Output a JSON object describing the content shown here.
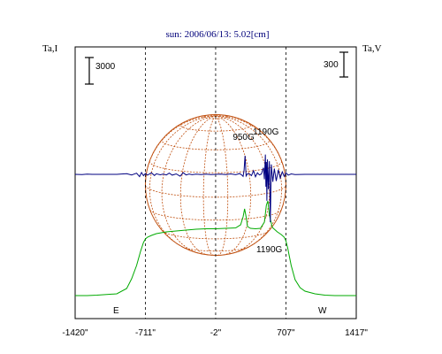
{
  "chart_data": {
    "type": "line",
    "title": "sun: 2006/06/13: 5.02[cm]",
    "left_axis_label": "Ta,I",
    "right_axis_label": "Ta,V",
    "left_scale_bar_label": "3000",
    "right_scale_bar_label": "300",
    "xlim": [
      -1420,
      1417
    ],
    "x_ticks": [
      {
        "value": -1420,
        "label": "-1420\""
      },
      {
        "value": -711,
        "label": "-711\""
      },
      {
        "value": -2,
        "label": "-2\""
      },
      {
        "value": 707,
        "label": "707\""
      },
      {
        "value": 1417,
        "label": "1417\""
      }
    ],
    "limb_labels": {
      "east": "E",
      "west": "W"
    },
    "limb_positions": [
      -711,
      707
    ],
    "annotations": [
      {
        "text": "950G",
        "x": 280
      },
      {
        "text": "1190G",
        "x": 505
      },
      {
        "text": "1190G",
        "x": 540
      }
    ],
    "colors": {
      "stokes_i": "#00aa00",
      "stokes_v": "#000080",
      "grid": "#c05010",
      "axis": "#000000"
    },
    "series": [
      {
        "name": "",
        "axis": "left",
        "x": [
          -1420,
          -1300,
          -1200,
          -1000,
          -900,
          -850,
          -800,
          -760,
          -730,
          -711,
          -690,
          -650,
          -600,
          -500,
          -400,
          -300,
          -200,
          -100,
          -2,
          100,
          200,
          250,
          275,
          290,
          305,
          320,
          350,
          400,
          450,
          490,
          510,
          525,
          540,
          570,
          620,
          660,
          690,
          707,
          725,
          760,
          800,
          850,
          900,
          1000,
          1100,
          1200,
          1300,
          1417
        ],
        "y": [
          300,
          300,
          350,
          500,
          1100,
          2200,
          3700,
          5300,
          6300,
          6700,
          6900,
          7100,
          7300,
          7500,
          7600,
          7700,
          7800,
          7850,
          7850,
          7900,
          7950,
          8300,
          9200,
          10100,
          9200,
          8100,
          7900,
          7850,
          7900,
          8600,
          10500,
          11000,
          9400,
          8000,
          7500,
          7200,
          6900,
          6500,
          5700,
          3700,
          2100,
          1200,
          800,
          500,
          350,
          300,
          300,
          300
        ]
      },
      {
        "name": "",
        "axis": "right",
        "x": [
          -1420,
          -1350,
          -1300,
          -1250,
          -1200,
          -1100,
          -1000,
          -900,
          -850,
          -800,
          -770,
          -750,
          -730,
          -711,
          -690,
          -670,
          -650,
          -620,
          -600,
          -560,
          -530,
          -500,
          -470,
          -440,
          -400,
          -360,
          -330,
          -300,
          -270,
          -240,
          -200,
          -150,
          -100,
          -50,
          -2,
          50,
          100,
          150,
          200,
          240,
          265,
          275,
          285,
          295,
          305,
          320,
          340,
          360,
          380,
          400,
          420,
          440,
          460,
          480,
          490,
          500,
          505,
          510,
          515,
          520,
          530,
          540,
          550,
          560,
          575,
          590,
          610,
          630,
          650,
          670,
          690,
          707,
          730,
          760,
          800,
          900,
          1000,
          1100,
          1200,
          1300,
          1417
        ],
        "y": [
          0,
          -2,
          3,
          0,
          0,
          0,
          0,
          8,
          -8,
          14,
          -28,
          22,
          -16,
          12,
          -10,
          4,
          18,
          -14,
          6,
          -5,
          3,
          -8,
          15,
          -10,
          5,
          -22,
          20,
          -8,
          4,
          -4,
          3,
          -3,
          2,
          -2,
          0,
          3,
          -3,
          5,
          -4,
          10,
          -12,
          -25,
          50,
          225,
          -20,
          8,
          4,
          -15,
          45,
          -30,
          18,
          -8,
          4,
          80,
          -60,
          240,
          -150,
          150,
          -320,
          180,
          -180,
          160,
          -580,
          120,
          -90,
          70,
          -80,
          55,
          -45,
          30,
          -25,
          20,
          -10,
          5,
          -2,
          0,
          0,
          0,
          0,
          0,
          0
        ]
      }
    ]
  }
}
